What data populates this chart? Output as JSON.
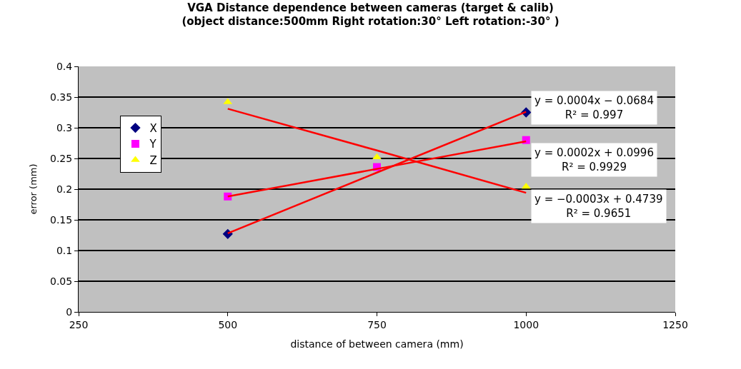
{
  "chart_data": {
    "type": "scatter",
    "title": "VGA Distance dependence between cameras (target & calib)",
    "subtitle": "(object distance:500mm Right rotation:30° Left rotation:-30° )",
    "xlabel": "distance of between camera (mm)",
    "ylabel": "error (mm)",
    "x": [
      500,
      750,
      1000
    ],
    "series": [
      {
        "name": "X",
        "color": "#000080",
        "marker": "diamond",
        "values": [
          0.127,
          null,
          0.325
        ]
      },
      {
        "name": "Y",
        "color": "#ff00ff",
        "marker": "square",
        "values": [
          0.188,
          0.236,
          0.28
        ]
      },
      {
        "name": "Z",
        "color": "#ffff00",
        "marker": "triangle",
        "values": [
          0.342,
          0.252,
          0.204
        ]
      },
      {
        "type": "line",
        "color": "#ff0000",
        "values": [
          0.128,
          0.227,
          0.326
        ]
      },
      {
        "type": "line",
        "color": "#ff0000",
        "values": [
          0.188,
          0.233,
          0.278
        ]
      },
      {
        "type": "line",
        "color": "#ff0000",
        "values": [
          0.331,
          0.263,
          0.194
        ]
      }
    ],
    "annotations": [
      "y = 0.0004x − 0.0684\nR² = 0.997",
      "y = 0.0002x + 0.0996\nR² = 0.9929",
      "y = −0.0003x + 0.4739\nR² = 0.9651"
    ],
    "xlim": [
      250,
      1250
    ],
    "xticks": [
      250,
      500,
      750,
      1000,
      1250
    ],
    "ylim": [
      0,
      0.4
    ],
    "yticks": [
      0,
      0.05,
      0.1,
      0.15,
      0.2,
      0.25,
      0.3,
      0.35,
      0.4
    ],
    "grid": "y",
    "legend": "top left"
  }
}
